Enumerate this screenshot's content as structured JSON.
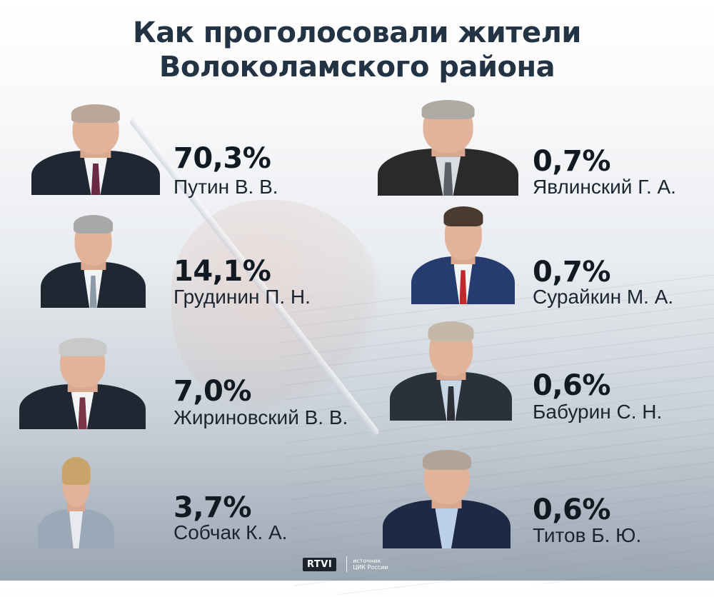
{
  "chart_data": {
    "type": "table",
    "title": "Как проголосовали жители Волоколамского района",
    "title_lines": [
      "Как проголосовали жители",
      "Волоколамского района"
    ],
    "categories": [
      "Путин В. В.",
      "Грудинин П. Н.",
      "Жириновский В. В.",
      "Собчак К. А.",
      "Явлинский Г. А.",
      "Сурайкин М. А.",
      "Бабурин С. Н.",
      "Титов Б. Ю."
    ],
    "values": [
      70.3,
      14.1,
      7.0,
      3.7,
      0.7,
      0.7,
      0.6,
      0.6
    ],
    "unit": "%",
    "candidates": [
      {
        "pct": "70,3%",
        "name": "Путин В. В."
      },
      {
        "pct": "14,1%",
        "name": "Грудинин П. Н."
      },
      {
        "pct": "7,0%",
        "name": "Жириновский В. В."
      },
      {
        "pct": "3,7%",
        "name": "Собчак К. А."
      },
      {
        "pct": "0,7%",
        "name": "Явлинский Г. А."
      },
      {
        "pct": "0,7%",
        "name": "Сурайкин М. А."
      },
      {
        "pct": "0,6%",
        "name": "Бабурин С. Н."
      },
      {
        "pct": "0,6%",
        "name": "Титов Б. Ю."
      }
    ]
  },
  "footer": {
    "logo": "RTVI",
    "source_lines": [
      "источник",
      "ЦИК России"
    ]
  },
  "colors": {
    "title": "#223344",
    "text": "#111a22",
    "suit": "#1f2733"
  }
}
